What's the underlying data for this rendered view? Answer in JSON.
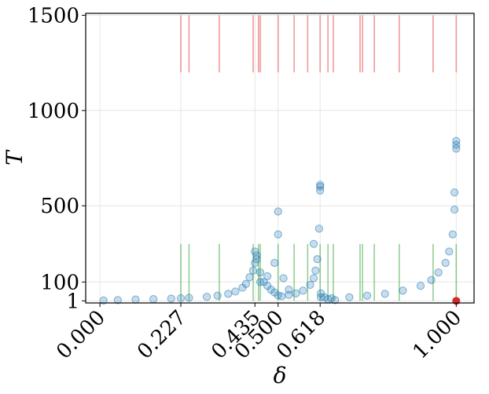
{
  "chart_data": {
    "type": "scatter",
    "title": "",
    "xlabel": "δ",
    "ylabel": "T",
    "xlim": [
      -0.04,
      1.05
    ],
    "ylim": [
      -10,
      1510
    ],
    "grid": true,
    "legend": "none",
    "x_ticks": [
      {
        "value": 0.0,
        "label": "0.000"
      },
      {
        "value": 0.227,
        "label": "0.227"
      },
      {
        "value": 0.435,
        "label": "0.435"
      },
      {
        "value": 0.5,
        "label": "0.500"
      },
      {
        "value": 0.618,
        "label": "0.618"
      },
      {
        "value": 1.0,
        "label": "1.000"
      }
    ],
    "y_ticks": [
      {
        "value": 1,
        "label": "1"
      },
      {
        "value": 100,
        "label": "100"
      },
      {
        "value": 500,
        "label": "500"
      },
      {
        "value": 1000,
        "label": "1000"
      },
      {
        "value": 1500,
        "label": "1500"
      }
    ],
    "colors": {
      "points": "#1f77b4",
      "red_lines": "#f08080",
      "green_lines": "#2ca02c",
      "marker": "#d62728"
    },
    "marker_point": {
      "x": 1.0,
      "y": 1
    },
    "red_line_range": [
      1200,
      1500
    ],
    "green_line_range": [
      1,
      300
    ],
    "vertical_lines_x": [
      0.227,
      0.25,
      0.335,
      0.43,
      0.445,
      0.45,
      0.5,
      0.545,
      0.583,
      0.618,
      0.64,
      0.655,
      0.73,
      0.737,
      0.77,
      0.84,
      0.935,
      1.0
    ],
    "series": [
      {
        "x": [
          0.01,
          0.05,
          0.1,
          0.15,
          0.2,
          0.227,
          0.25,
          0.3,
          0.33,
          0.36,
          0.38,
          0.4,
          0.41,
          0.42,
          0.43,
          0.435,
          0.44,
          0.45,
          0.46,
          0.47,
          0.48,
          0.49,
          0.5,
          0.51,
          0.53,
          0.55,
          0.57,
          0.59,
          0.6,
          0.605,
          0.61,
          0.615,
          0.618,
          0.62,
          0.63,
          0.65,
          0.7,
          0.75,
          0.8,
          0.85,
          0.9,
          0.93,
          0.95,
          0.97,
          0.98,
          0.99,
          0.995,
          1.0
        ],
        "y": [
          3,
          5,
          8,
          10,
          13,
          15,
          17,
          22,
          28,
          38,
          50,
          70,
          90,
          125,
          160,
          200,
          240,
          150,
          100,
          80,
          60,
          45,
          30,
          25,
          32,
          40,
          55,
          85,
          120,
          160,
          220,
          380,
          580,
          40,
          20,
          15,
          20,
          28,
          38,
          55,
          80,
          110,
          150,
          200,
          260,
          350,
          480,
          820
        ]
      },
      {
        "x": [
          0.435,
          0.44,
          0.45,
          0.47,
          0.49,
          0.5,
          0.5,
          0.515,
          0.53,
          0.6,
          0.618,
          0.618,
          0.62,
          0.64,
          0.66,
          0.995,
          1.0,
          1.0
        ],
        "y": [
          260,
          220,
          100,
          130,
          200,
          470,
          350,
          120,
          60,
          300,
          600,
          610,
          20,
          10,
          5,
          570,
          800,
          840
        ]
      }
    ]
  }
}
